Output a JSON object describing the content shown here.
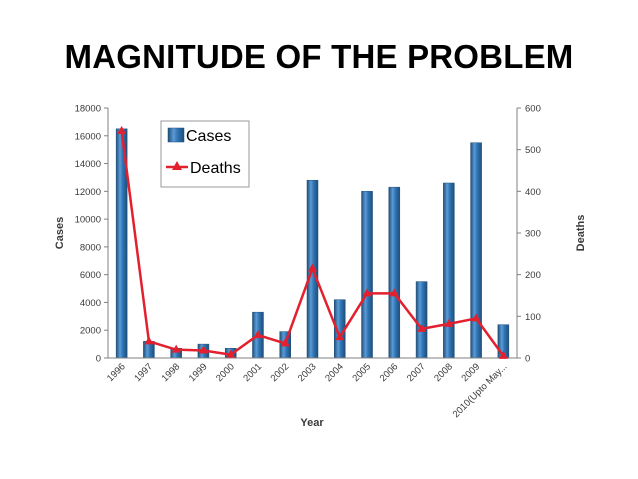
{
  "slide": {
    "title": "MAGNITUDE OF THE PROBLEM"
  },
  "colors": {
    "bar": "#2f74b5",
    "barDark": "#1f4e79",
    "barLight": "#6aa6dc",
    "line": "#e2202e",
    "axis": "#808080",
    "text": "#3a3a3a"
  },
  "chart_data": {
    "type": "bar+line",
    "title": "",
    "xlabel": "Year",
    "ylabel_left": "Cases",
    "ylabel_right": "Deaths",
    "categories": [
      "1996",
      "1997",
      "1998",
      "1999",
      "2000",
      "2001",
      "2002",
      "2003",
      "2004",
      "2005",
      "2006",
      "2007",
      "2008",
      "2009",
      "2010(Upto May..."
    ],
    "series": [
      {
        "name": "Cases",
        "axis": "left",
        "kind": "bar",
        "values": [
          16500,
          1200,
          700,
          1000,
          700,
          3300,
          1900,
          12800,
          4200,
          12000,
          12300,
          5500,
          12600,
          15500,
          2400
        ]
      },
      {
        "name": "Deaths",
        "axis": "right",
        "kind": "line",
        "marker": "triangle",
        "values": [
          545,
          40,
          20,
          18,
          8,
          55,
          35,
          215,
          50,
          155,
          155,
          70,
          82,
          95,
          5
        ]
      }
    ],
    "ylim_left": [
      0,
      18000
    ],
    "yticks_left": [
      "0",
      "2000",
      "4000",
      "6000",
      "8000",
      "10000",
      "12000",
      "14000",
      "16000",
      "18000"
    ],
    "ylim_right": [
      0,
      600
    ],
    "yticks_right": [
      "0",
      "100",
      "200",
      "300",
      "400",
      "500",
      "600"
    ],
    "legend": {
      "position": "top-left",
      "entries": [
        "Cases",
        "Deaths"
      ]
    },
    "grid": false
  }
}
